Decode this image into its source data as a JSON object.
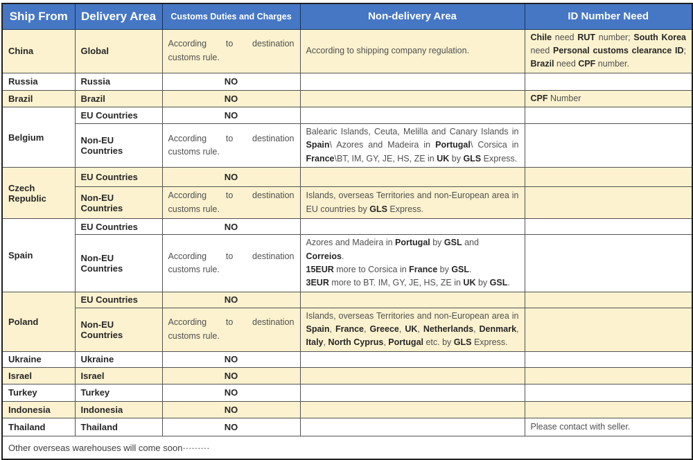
{
  "table": {
    "headers": {
      "ship_from": "Ship From",
      "delivery_area": "Delivery Area",
      "customs": "Customs Duties and Charges",
      "non_delivery": "Non-delivery Area",
      "id_number": "ID Number Need"
    },
    "customs_according": "According to destination customs rule.",
    "customs_no": "NO",
    "groups": [
      {
        "ship_from": "China",
        "rows": [
          {
            "delivery_area": "Global",
            "customs": "According to destination customs rule.",
            "non_delivery": [
              [
                "According to shipping company regulation.",
                0
              ]
            ],
            "id": [
              [
                "Chile",
                1
              ],
              [
                " need ",
                0
              ],
              [
                "RUT",
                1
              ],
              [
                " number; ",
                0
              ],
              [
                "South Korea",
                1
              ],
              [
                " need ",
                0
              ],
              [
                "Personal customs clearance ID",
                1
              ],
              [
                "; ",
                0
              ],
              [
                "Brazil",
                1
              ],
              [
                " need ",
                0
              ],
              [
                "CPF",
                1
              ],
              [
                " number.",
                0
              ]
            ]
          }
        ]
      },
      {
        "ship_from": "Russia",
        "rows": [
          {
            "delivery_area": "Russia",
            "customs": "NO"
          }
        ]
      },
      {
        "ship_from": "Brazil",
        "rows": [
          {
            "delivery_area": "Brazil",
            "customs": "NO",
            "id": [
              [
                "CPF",
                1
              ],
              [
                " Number",
                0
              ]
            ]
          }
        ]
      },
      {
        "ship_from": "Belgium",
        "rows": [
          {
            "delivery_area": "EU Countries",
            "customs": "NO"
          },
          {
            "delivery_area": "Non-EU Countries",
            "customs": "According to destination customs rule.",
            "non_delivery": [
              [
                "Balearic Islands, Ceuta, Melilla and Canary Islands in ",
                0
              ],
              [
                "Spain",
                1
              ],
              [
                "\\ Azores and Madeira in ",
                0
              ],
              [
                "Portugal",
                1
              ],
              [
                "\\ Corsica in ",
                0
              ],
              [
                "France",
                1
              ],
              [
                "\\BT, IM, GY, JE, HS, ZE in ",
                0
              ],
              [
                "UK",
                1
              ],
              [
                " by ",
                0
              ],
              [
                "GLS",
                1
              ],
              [
                " Express.",
                0
              ]
            ]
          }
        ]
      },
      {
        "ship_from": "Czech Republic",
        "rows": [
          {
            "delivery_area": "EU Countries",
            "customs": "NO"
          },
          {
            "delivery_area": "Non-EU Countries",
            "customs": "According to destination customs rule.",
            "non_delivery": [
              [
                "Islands, overseas Territories and non-European area in EU countries by ",
                0
              ],
              [
                "GLS",
                1
              ],
              [
                " Express.",
                0
              ]
            ]
          }
        ]
      },
      {
        "ship_from": "Spain",
        "rows": [
          {
            "delivery_area": "EU Countries",
            "customs": "NO"
          },
          {
            "delivery_area": "Non-EU Countries",
            "customs": "According to destination customs rule.",
            "non_delivery_lines": [
              [
                [
                  "Azores and Madeira in ",
                  0
                ],
                [
                  "Portugal",
                  1
                ],
                [
                  " by ",
                  0
                ],
                [
                  "GSL",
                  1
                ],
                [
                  " and ",
                  0
                ],
                [
                  "Correios",
                  1
                ],
                [
                  ".",
                  0
                ]
              ],
              [
                [
                  "15EUR",
                  1
                ],
                [
                  " more to Corsica in ",
                  0
                ],
                [
                  "France",
                  1
                ],
                [
                  " by ",
                  0
                ],
                [
                  "GSL",
                  1
                ],
                [
                  ".",
                  0
                ]
              ],
              [
                [
                  "3EUR",
                  1
                ],
                [
                  " more to BT. IM, GY, JE, HS, ZE in ",
                  0
                ],
                [
                  "UK",
                  1
                ],
                [
                  " by ",
                  0
                ],
                [
                  "GSL",
                  1
                ],
                [
                  ".",
                  0
                ]
              ]
            ]
          }
        ]
      },
      {
        "ship_from": "Poland",
        "rows": [
          {
            "delivery_area": "EU Countries",
            "customs": "NO"
          },
          {
            "delivery_area": "Non-EU Countries",
            "customs": "According to destination customs rule.",
            "non_delivery": [
              [
                "Islands, overseas Territories and non-European area in ",
                0
              ],
              [
                "Spain",
                1
              ],
              [
                ", ",
                0
              ],
              [
                "France",
                1
              ],
              [
                ", ",
                0
              ],
              [
                "Greece",
                1
              ],
              [
                ", ",
                0
              ],
              [
                "UK",
                1
              ],
              [
                ", ",
                0
              ],
              [
                "Netherlands",
                1
              ],
              [
                ", ",
                0
              ],
              [
                "Denmark",
                1
              ],
              [
                ", ",
                0
              ],
              [
                "Italy",
                1
              ],
              [
                ", ",
                0
              ],
              [
                "North Cyprus",
                1
              ],
              [
                ", ",
                0
              ],
              [
                "Portugal",
                1
              ],
              [
                " etc. by ",
                0
              ],
              [
                "GLS",
                1
              ],
              [
                " Express.",
                0
              ]
            ]
          }
        ]
      },
      {
        "ship_from": "Ukraine",
        "rows": [
          {
            "delivery_area": "Ukraine",
            "customs": "NO"
          }
        ]
      },
      {
        "ship_from": "Israel",
        "rows": [
          {
            "delivery_area": "Israel",
            "customs": "NO"
          }
        ]
      },
      {
        "ship_from": "Turkey",
        "rows": [
          {
            "delivery_area": "Turkey",
            "customs": "NO"
          }
        ]
      },
      {
        "ship_from": "Indonesia",
        "rows": [
          {
            "delivery_area": "Indonesia",
            "customs": "NO"
          }
        ]
      },
      {
        "ship_from": "Thailand",
        "rows": [
          {
            "delivery_area": "Thailand",
            "customs": "NO",
            "id": [
              [
                "Please contact with seller.",
                0
              ]
            ]
          }
        ]
      }
    ],
    "footer_note": "Other overseas warehouses will come soon·········"
  },
  "colors": {
    "header_bg": "#4677C5",
    "row_cream": "#FCF2CF",
    "row_white": "#FFFFFF",
    "border_dark": "#1F1F1F",
    "border_inner": "#525252"
  }
}
